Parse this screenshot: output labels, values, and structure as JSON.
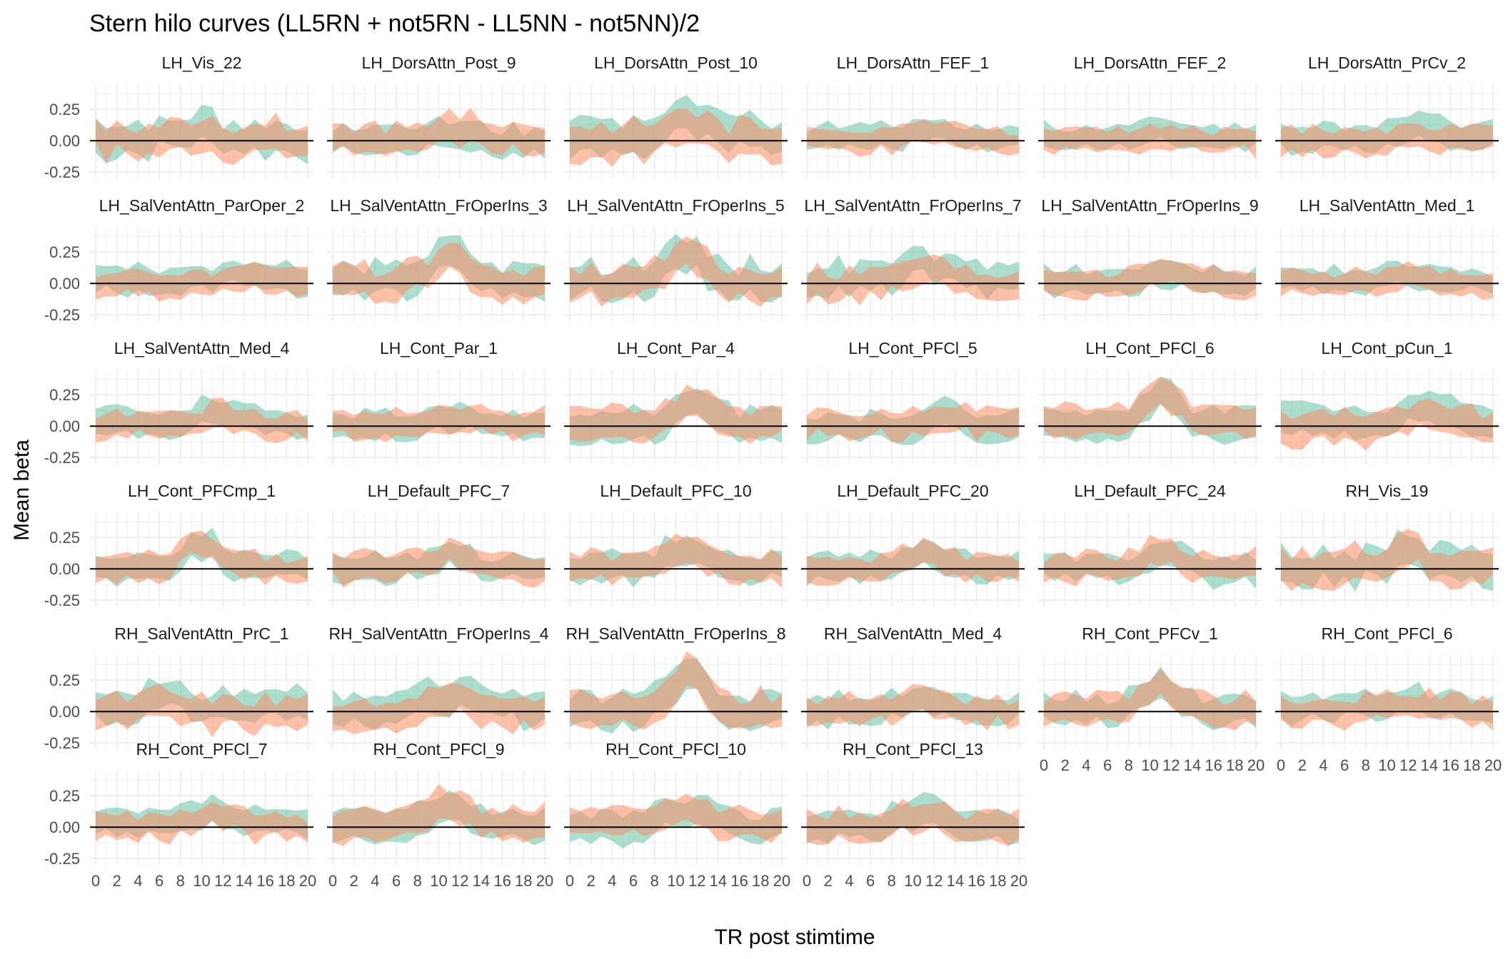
{
  "title": "Stern hilo curves (LL5RN + not5RN - LL5NN - not5NN)/2",
  "xlabel": "TR post stimtime",
  "ylabel": "Mean beta",
  "colors": {
    "teal": "#66c2a5",
    "orange": "#fc8d62",
    "grid": "#ebebeb",
    "text": "#000000",
    "tick": "#4d4d4d"
  },
  "chart_data": {
    "type": "area",
    "x_ticks": [
      0,
      2,
      4,
      6,
      8,
      10,
      12,
      14,
      16,
      18,
      20
    ],
    "y_ticks": [
      -0.25,
      0.0,
      0.25
    ],
    "y_tick_labels": [
      "-0.25",
      "0.00",
      "0.25"
    ],
    "x_tick_labels": [
      "0",
      "2",
      "4",
      "6",
      "8",
      "10",
      "12",
      "14",
      "16",
      "18",
      "20"
    ],
    "xlim": [
      0,
      20
    ],
    "ylim": [
      -0.3,
      0.45
    ],
    "grid": true,
    "hline": 0,
    "layout": "facet grid, 6 columns by 6 rows",
    "panels": [
      {
        "title": "LH_Vis_22",
        "peak": 0.08,
        "peak_x": 10,
        "noise": 0.09,
        "band": 0.12,
        "teal_shift": 0.02,
        "show_x_axis": false
      },
      {
        "title": "LH_DorsAttn_Post_9",
        "peak": 0.08,
        "peak_x": 12,
        "noise": 0.06,
        "band": 0.11,
        "teal_shift": -0.01,
        "show_x_axis": false
      },
      {
        "title": "LH_DorsAttn_Post_10",
        "peak": 0.15,
        "peak_x": 11,
        "noise": 0.07,
        "band": 0.13,
        "teal_shift": 0.03,
        "show_x_axis": false
      },
      {
        "title": "LH_DorsAttn_FEF_1",
        "peak": 0.07,
        "peak_x": 12,
        "noise": 0.04,
        "band": 0.09,
        "teal_shift": 0.02,
        "show_x_axis": false
      },
      {
        "title": "LH_DorsAttn_FEF_2",
        "peak": 0.04,
        "peak_x": 11,
        "noise": 0.04,
        "band": 0.09,
        "teal_shift": 0.02,
        "show_x_axis": false
      },
      {
        "title": "LH_DorsAttn_PrCv_2",
        "peak": 0.06,
        "peak_x": 13,
        "noise": 0.05,
        "band": 0.1,
        "teal_shift": 0.02,
        "show_x_axis": false
      },
      {
        "title": "LH_SalVentAttn_ParOper_2",
        "peak": 0.07,
        "peak_x": 14,
        "noise": 0.04,
        "band": 0.1,
        "teal_shift": 0.02,
        "show_x_axis": false
      },
      {
        "title": "LH_SalVentAttn_FrOperIns_3",
        "peak": 0.22,
        "peak_x": 11,
        "noise": 0.06,
        "band": 0.12,
        "teal_shift": 0.01,
        "show_x_axis": false
      },
      {
        "title": "LH_SalVentAttn_FrOperIns_5",
        "peak": 0.2,
        "peak_x": 11,
        "noise": 0.07,
        "band": 0.12,
        "teal_shift": 0.02,
        "show_x_axis": false
      },
      {
        "title": "LH_SalVentAttn_FrOperIns_7",
        "peak": 0.12,
        "peak_x": 11,
        "noise": 0.07,
        "band": 0.11,
        "teal_shift": 0.03,
        "show_x_axis": false
      },
      {
        "title": "LH_SalVentAttn_FrOperIns_9",
        "peak": 0.07,
        "peak_x": 12,
        "noise": 0.04,
        "band": 0.1,
        "teal_shift": 0.01,
        "show_x_axis": false
      },
      {
        "title": "LH_SalVentAttn_Med_1",
        "peak": 0.05,
        "peak_x": 12,
        "noise": 0.04,
        "band": 0.09,
        "teal_shift": 0.01,
        "show_x_axis": false
      },
      {
        "title": "LH_SalVentAttn_Med_4",
        "peak": 0.08,
        "peak_x": 11,
        "noise": 0.05,
        "band": 0.1,
        "teal_shift": 0.02,
        "show_x_axis": false
      },
      {
        "title": "LH_Cont_Par_1",
        "peak": 0.07,
        "peak_x": 12,
        "noise": 0.04,
        "band": 0.1,
        "teal_shift": 0.0,
        "show_x_axis": false
      },
      {
        "title": "LH_Cont_Par_4",
        "peak": 0.2,
        "peak_x": 12,
        "noise": 0.05,
        "band": 0.12,
        "teal_shift": -0.02,
        "show_x_axis": false
      },
      {
        "title": "LH_Cont_PFCl_5",
        "peak": 0.08,
        "peak_x": 13,
        "noise": 0.05,
        "band": 0.1,
        "teal_shift": -0.01,
        "show_x_axis": false
      },
      {
        "title": "LH_Cont_PFCl_6",
        "peak": 0.26,
        "peak_x": 11,
        "noise": 0.05,
        "band": 0.12,
        "teal_shift": -0.02,
        "show_x_axis": false
      },
      {
        "title": "LH_Cont_pCun_1",
        "peak": 0.12,
        "peak_x": 14,
        "noise": 0.05,
        "band": 0.12,
        "teal_shift": 0.04,
        "show_x_axis": false
      },
      {
        "title": "LH_Cont_PFCmp_1",
        "peak": 0.19,
        "peak_x": 10,
        "noise": 0.05,
        "band": 0.1,
        "teal_shift": 0.0,
        "show_x_axis": false
      },
      {
        "title": "LH_Default_PFC_7",
        "peak": 0.12,
        "peak_x": 11,
        "noise": 0.05,
        "band": 0.1,
        "teal_shift": 0.0,
        "show_x_axis": false
      },
      {
        "title": "LH_Default_PFC_10",
        "peak": 0.16,
        "peak_x": 11,
        "noise": 0.05,
        "band": 0.11,
        "teal_shift": 0.01,
        "show_x_axis": false
      },
      {
        "title": "LH_Default_PFC_20",
        "peak": 0.12,
        "peak_x": 11,
        "noise": 0.04,
        "band": 0.1,
        "teal_shift": 0.0,
        "show_x_axis": false
      },
      {
        "title": "LH_Default_PFC_24",
        "peak": 0.14,
        "peak_x": 11,
        "noise": 0.05,
        "band": 0.1,
        "teal_shift": -0.01,
        "show_x_axis": false
      },
      {
        "title": "RH_Vis_19",
        "peak": 0.12,
        "peak_x": 12,
        "noise": 0.08,
        "band": 0.13,
        "teal_shift": 0.0,
        "show_x_axis": false
      },
      {
        "title": "RH_SalVentAttn_PrC_1",
        "peak": 0.06,
        "peak_x": 6,
        "noise": 0.07,
        "band": 0.11,
        "teal_shift": 0.04,
        "show_x_axis": false
      },
      {
        "title": "RH_SalVentAttn_FrOperIns_4",
        "peak": 0.1,
        "peak_x": 11,
        "noise": 0.06,
        "band": 0.12,
        "teal_shift": 0.03,
        "show_x_axis": false
      },
      {
        "title": "RH_SalVentAttn_FrOperIns_8",
        "peak": 0.28,
        "peak_x": 11,
        "noise": 0.06,
        "band": 0.13,
        "teal_shift": 0.0,
        "show_x_axis": false
      },
      {
        "title": "RH_SalVentAttn_Med_4",
        "peak": 0.12,
        "peak_x": 11,
        "noise": 0.05,
        "band": 0.1,
        "teal_shift": 0.01,
        "show_x_axis": false
      },
      {
        "title": "RH_Cont_PFCv_1",
        "peak": 0.2,
        "peak_x": 11,
        "noise": 0.05,
        "band": 0.11,
        "teal_shift": 0.0,
        "show_x_axis": true
      },
      {
        "title": "RH_Cont_PFCl_6",
        "peak": 0.08,
        "peak_x": 12,
        "noise": 0.05,
        "band": 0.1,
        "teal_shift": 0.02,
        "show_x_axis": true
      },
      {
        "title": "RH_Cont_PFCl_7",
        "peak": 0.1,
        "peak_x": 11,
        "noise": 0.05,
        "band": 0.1,
        "teal_shift": 0.01,
        "show_x_axis": true
      },
      {
        "title": "RH_Cont_PFCl_9",
        "peak": 0.18,
        "peak_x": 11,
        "noise": 0.05,
        "band": 0.12,
        "teal_shift": -0.01,
        "show_x_axis": true
      },
      {
        "title": "RH_Cont_PFCl_10",
        "peak": 0.14,
        "peak_x": 11,
        "noise": 0.06,
        "band": 0.11,
        "teal_shift": 0.0,
        "show_x_axis": true
      },
      {
        "title": "RH_Cont_PFCl_13",
        "peak": 0.12,
        "peak_x": 11,
        "noise": 0.06,
        "band": 0.11,
        "teal_shift": 0.01,
        "show_x_axis": true
      }
    ]
  }
}
